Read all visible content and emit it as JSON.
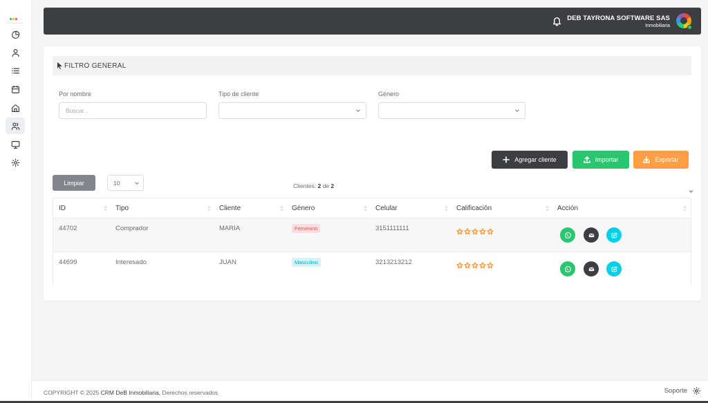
{
  "topbar": {
    "company_name": "DEB TAYRONA SOFTWARE SAS",
    "company_sub": "Inmobiliaria"
  },
  "sidebar": {
    "items": [
      {
        "icon": "pie-chart-icon"
      },
      {
        "icon": "user-icon"
      },
      {
        "icon": "list-icon"
      },
      {
        "icon": "calendar-icon"
      },
      {
        "icon": "home-icon"
      },
      {
        "icon": "users-icon",
        "active": true
      },
      {
        "icon": "monitor-icon"
      },
      {
        "icon": "settings-icon"
      }
    ]
  },
  "filter": {
    "title": "FILTRO GENERAL",
    "name_label": "Por nombre",
    "name_placeholder": "Buscar...",
    "type_label": "Tipo de cliente",
    "type_value": "",
    "gender_label": "Género",
    "gender_value": ""
  },
  "actions": {
    "add": "Agregar cliente",
    "import": "Importar",
    "export": "Exportar",
    "clear": "Limpiar",
    "page_size": "10"
  },
  "count": {
    "label": "Clientes:",
    "shown": "2",
    "of": "de",
    "total": "2"
  },
  "table": {
    "columns": [
      "ID",
      "Tipo",
      "Cliente",
      "Género",
      "Celular",
      "Calificación",
      "Acción"
    ],
    "rows": [
      {
        "id": "44702",
        "tipo": "Comprador",
        "cliente": "MARIA",
        "genero": "Femenino",
        "celular": "3151111111",
        "rating": 0
      },
      {
        "id": "44699",
        "tipo": "Interesado",
        "cliente": "JUAN",
        "genero": "Masculino",
        "celular": "3213213212",
        "rating": 0
      }
    ]
  },
  "footer": {
    "copyright_prefix": "COPYRIGHT © 2025",
    "brand": "CRM DeB Inmobiliaria,",
    "rights": "Derechos reservados",
    "support": "Soporte"
  },
  "colors": {
    "dark": "#3d3e42",
    "success": "#28c76f",
    "warning": "#ff9f43",
    "info": "#00cfe8",
    "danger": "#ea5455"
  }
}
